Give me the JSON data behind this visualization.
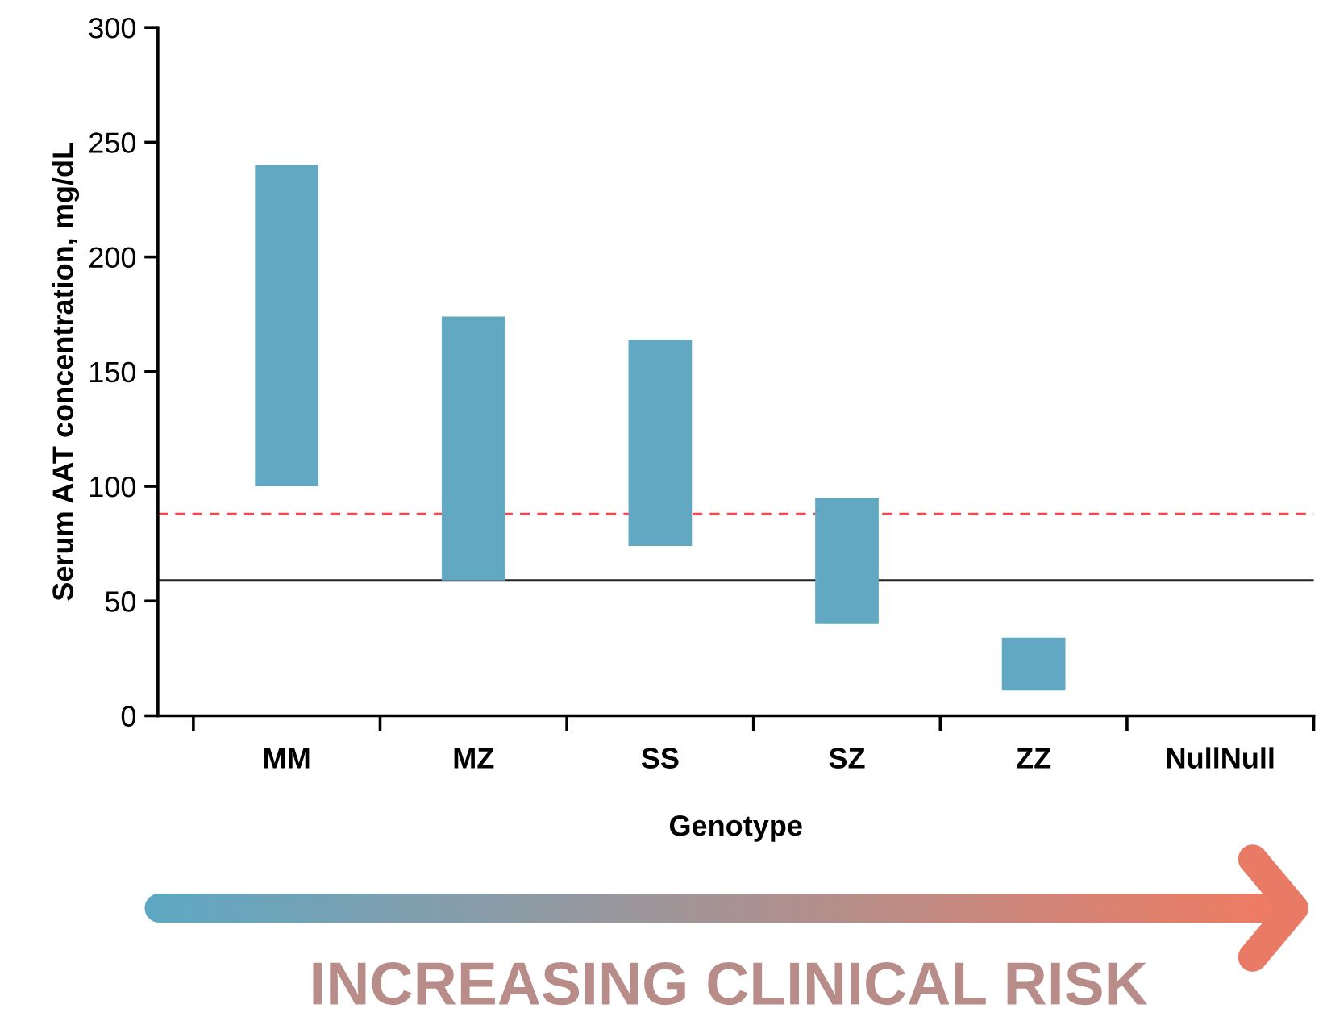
{
  "chart_data": {
    "type": "bar",
    "categories": [
      "MM",
      "MZ",
      "SS",
      "SZ",
      "ZZ",
      "NullNull"
    ],
    "values": [
      140,
      115,
      90,
      55,
      23,
      null
    ],
    "base": [
      100,
      59,
      74,
      40,
      11,
      null
    ],
    "color": "#62a8c2",
    "xlabel": "Genotype",
    "ylabel": "Serum AAT concentration, mg/dL",
    "ylim": [
      0,
      300
    ],
    "yticks": [
      0,
      50,
      100,
      150,
      200,
      250,
      300
    ],
    "grid": false,
    "ref_lines": [
      {
        "axis": "y",
        "value": 88,
        "color": "#f04a4a",
        "line_style": "dashed"
      },
      {
        "axis": "y",
        "value": 59,
        "color": "#222222",
        "line_style": "solid"
      }
    ],
    "annotations": [
      "INCREASING CLINICAL RISK"
    ]
  }
}
